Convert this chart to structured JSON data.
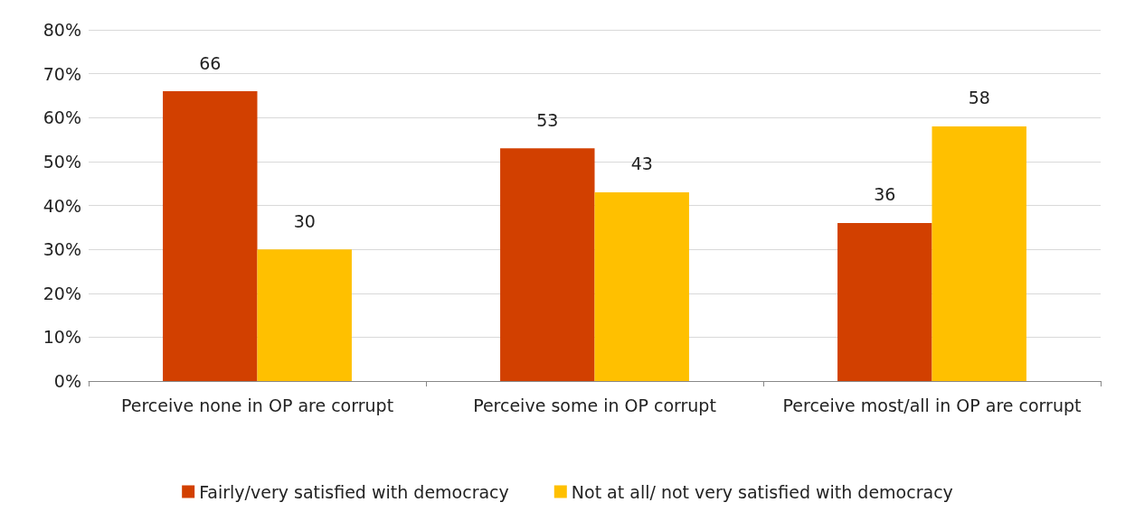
{
  "chart_data": {
    "type": "bar",
    "categories": [
      "Perceive none in OP are corrupt",
      "Perceive some in OP corrupt",
      "Perceive most/all in OP are corrupt"
    ],
    "series": [
      {
        "name": "Fairly/very satisfied with democracy",
        "color": "#d24000",
        "values": [
          66,
          53,
          36
        ]
      },
      {
        "name": "Not at all/ not very satisfied with democracy",
        "color": "#ffc000",
        "values": [
          30,
          43,
          58
        ]
      }
    ],
    "ylim": [
      0,
      80
    ],
    "yticks": [
      {
        "value": 0,
        "label": "0%"
      },
      {
        "value": 10,
        "label": "10%"
      },
      {
        "value": 20,
        "label": "20%"
      },
      {
        "value": 30,
        "label": "30%"
      },
      {
        "value": 40,
        "label": "40%"
      },
      {
        "value": 50,
        "label": "50%"
      },
      {
        "value": 60,
        "label": "60%"
      },
      {
        "value": 70,
        "label": "70%"
      },
      {
        "value": 80,
        "label": "80%"
      }
    ],
    "grid": "y",
    "legend": "bottom",
    "data_labels": true
  }
}
